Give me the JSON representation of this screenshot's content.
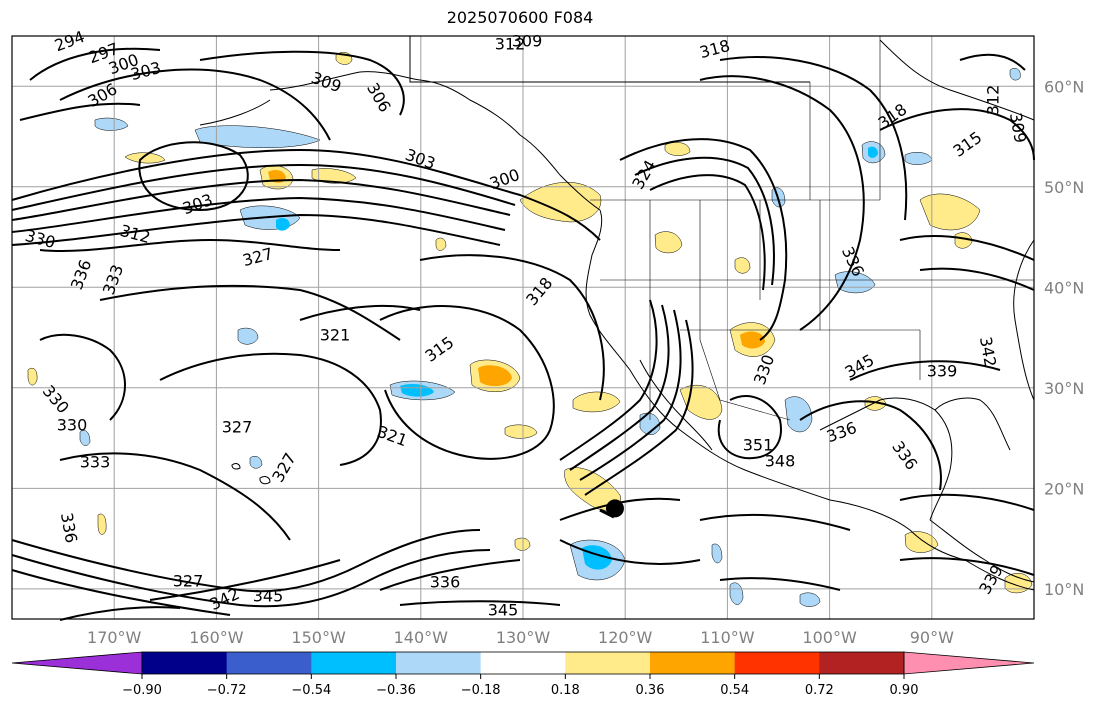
{
  "title": "2025070600 F084",
  "map": {
    "lon_range": [
      -180,
      -80
    ],
    "lat_range": [
      7,
      65
    ],
    "lat_ticks": [
      "60°N",
      "50°N",
      "40°N",
      "30°N",
      "20°N",
      "10°N"
    ],
    "lon_ticks": [
      "170°W",
      "160°W",
      "150°W",
      "140°W",
      "130°W",
      "120°W",
      "110°W",
      "100°W",
      "90°W"
    ],
    "grid_color": "#a0a0a0",
    "contour_labels": [
      {
        "text": "294"
      },
      {
        "text": "297"
      },
      {
        "text": "300"
      },
      {
        "text": "303"
      },
      {
        "text": "306"
      },
      {
        "text": "309"
      },
      {
        "text": "312"
      },
      {
        "text": "309"
      },
      {
        "text": "318"
      },
      {
        "text": "306"
      },
      {
        "text": "303"
      },
      {
        "text": "300"
      },
      {
        "text": "303"
      },
      {
        "text": "312"
      },
      {
        "text": "330"
      },
      {
        "text": "336"
      },
      {
        "text": "333"
      },
      {
        "text": "327"
      },
      {
        "text": "318"
      },
      {
        "text": "321"
      },
      {
        "text": "315"
      },
      {
        "text": "330"
      },
      {
        "text": "330"
      },
      {
        "text": "333"
      },
      {
        "text": "327"
      },
      {
        "text": "321"
      },
      {
        "text": "327"
      },
      {
        "text": "336"
      },
      {
        "text": "327"
      },
      {
        "text": "342"
      },
      {
        "text": "345"
      },
      {
        "text": "336"
      },
      {
        "text": "345"
      },
      {
        "text": "324"
      },
      {
        "text": "336"
      },
      {
        "text": "351"
      },
      {
        "text": "348"
      },
      {
        "text": "345"
      },
      {
        "text": "339"
      },
      {
        "text": "336"
      },
      {
        "text": "336"
      },
      {
        "text": "339"
      },
      {
        "text": "318"
      },
      {
        "text": "315"
      },
      {
        "text": "312"
      },
      {
        "text": "309"
      },
      {
        "text": "342"
      },
      {
        "text": "330"
      }
    ],
    "storm_marker": {
      "lon": -121.0,
      "lat": 18.0
    }
  },
  "colorbar": {
    "ticks": [
      "−0.90",
      "−0.72",
      "−0.54",
      "−0.36",
      "−0.18",
      "0.18",
      "0.36",
      "0.54",
      "0.72",
      "0.90"
    ],
    "colors": [
      "#9b30d9",
      "#00008b",
      "#3a5fcd",
      "#00bfff",
      "#add8f8",
      "#ffffff",
      "#ffeb8a",
      "#ffa500",
      "#ff3300",
      "#b22222",
      "#ff8fb0"
    ],
    "extend_low_color": "#9b30d9",
    "extend_high_color": "#ff8fb0"
  },
  "shading_colors": {
    "positive_light": "#ffeb8a",
    "positive_mid": "#ffa500",
    "negative_light": "#add8f8",
    "negative_mid": "#00bfff"
  }
}
